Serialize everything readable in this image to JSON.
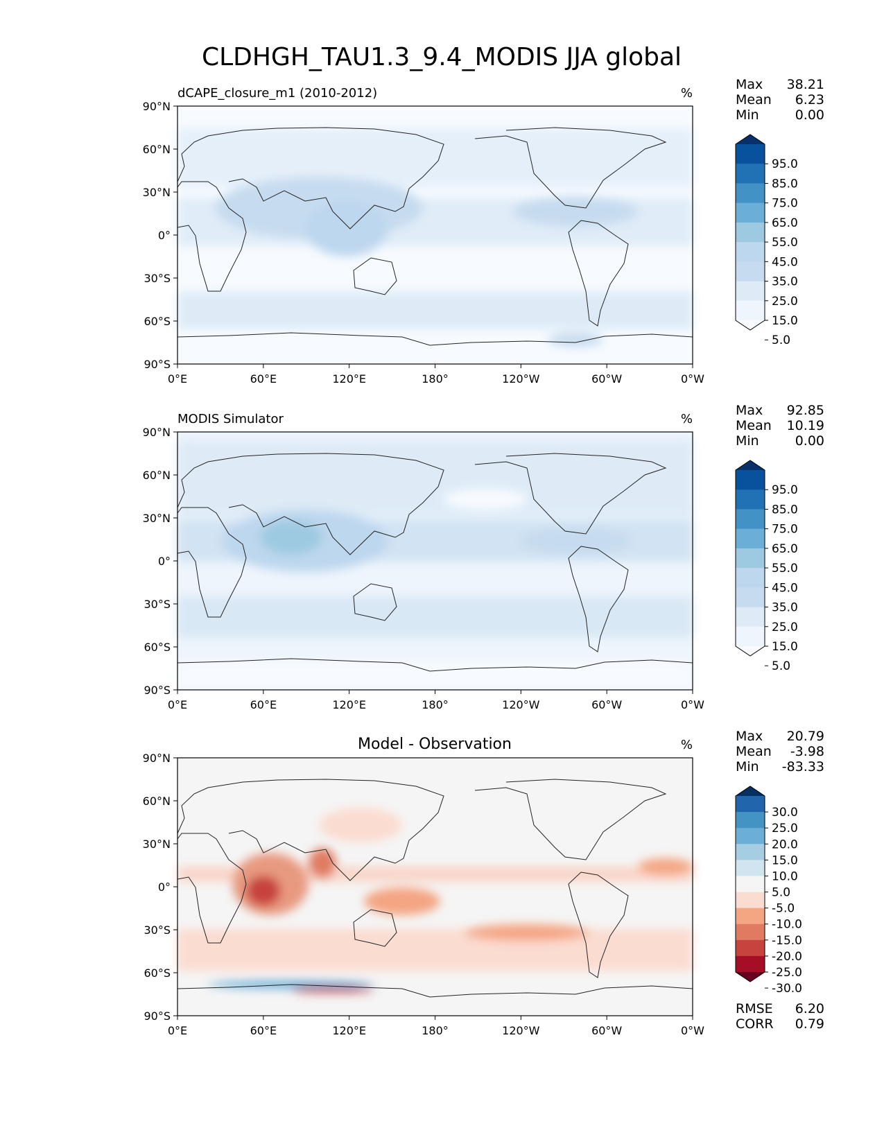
{
  "figure": {
    "title": "CLDHGH_TAU1.3_9.4_MODIS JJA global"
  },
  "axes": {
    "lat_ticks": [
      "90°N",
      "60°N",
      "30°N",
      "0°",
      "30°S",
      "60°S",
      "90°S"
    ],
    "lon_ticks": [
      "0°E",
      "60°E",
      "120°E",
      "180°",
      "120°W",
      "60°W",
      "0°W"
    ]
  },
  "chart_data": [
    {
      "type": "heatmap",
      "title": "dCAPE_closure_m1 (2010-2012)",
      "units": "%",
      "xlim": [
        0,
        360
      ],
      "ylim": [
        -90,
        90
      ],
      "stats": [
        {
          "label": "Max",
          "value": "38.21"
        },
        {
          "label": "Mean",
          "value": "6.23"
        },
        {
          "label": "Min",
          "value": "0.00"
        }
      ],
      "colorbar_labels": [
        "95.0",
        "85.0",
        "75.0",
        "65.0",
        "55.0",
        "45.0",
        "35.0",
        "25.0",
        "15.0",
        "5.0"
      ],
      "colorbar_colors": [
        "#08306b",
        "#08519c",
        "#2171b5",
        "#4292c6",
        "#6baed6",
        "#9ecae1",
        "#bdd7ee",
        "#c6dbef",
        "#deebf7",
        "#eef5fc",
        "#f7fbff"
      ]
    },
    {
      "type": "heatmap",
      "title": "MODIS Simulator",
      "units": "%",
      "xlim": [
        0,
        360
      ],
      "ylim": [
        -90,
        90
      ],
      "stats": [
        {
          "label": "Max",
          "value": "92.85"
        },
        {
          "label": "Mean",
          "value": "10.19"
        },
        {
          "label": "Min",
          "value": "0.00"
        }
      ],
      "colorbar_labels": [
        "95.0",
        "85.0",
        "75.0",
        "65.0",
        "55.0",
        "45.0",
        "35.0",
        "25.0",
        "15.0",
        "5.0"
      ],
      "colorbar_colors": [
        "#08306b",
        "#08519c",
        "#2171b5",
        "#4292c6",
        "#6baed6",
        "#9ecae1",
        "#bdd7ee",
        "#c6dbef",
        "#deebf7",
        "#eef5fc",
        "#f7fbff"
      ]
    },
    {
      "type": "heatmap",
      "title": "Model - Observation",
      "units": "%",
      "xlim": [
        0,
        360
      ],
      "ylim": [
        -90,
        90
      ],
      "stats": [
        {
          "label": "Max",
          "value": "20.79"
        },
        {
          "label": "Mean",
          "value": "-3.98"
        },
        {
          "label": "Min",
          "value": "-83.33"
        }
      ],
      "metrics": [
        {
          "label": "RMSE",
          "value": "6.20"
        },
        {
          "label": "CORR",
          "value": "0.79"
        }
      ],
      "colorbar_labels": [
        "30.0",
        "25.0",
        "20.0",
        "15.0",
        "10.0",
        "5.0",
        "-5.0",
        "-10.0",
        "-15.0",
        "-20.0",
        "-25.0",
        "-30.0"
      ],
      "colorbar_colors": [
        "#053061",
        "#2166ac",
        "#4393c3",
        "#6baed6",
        "#a6cee3",
        "#d1e5f0",
        "#f5f5f5",
        "#fbdcd0",
        "#f4a582",
        "#e07b62",
        "#c7433e",
        "#a50f26",
        "#67001f"
      ]
    }
  ]
}
